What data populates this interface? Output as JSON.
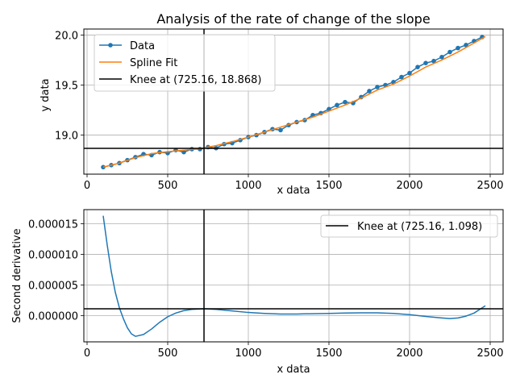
{
  "chart_data": [
    {
      "type": "line",
      "title": "Analysis of the rate of change of the slope",
      "xlabel": "x data",
      "ylabel": "y data",
      "xlim": [
        -20,
        2580
      ],
      "ylim": [
        18.61,
        20.06
      ],
      "xticks": [
        0,
        500,
        1000,
        1500,
        2000,
        2500
      ],
      "xtick_labels": [
        "0",
        "500",
        "1000",
        "1500",
        "2000",
        "2500"
      ],
      "yticks": [
        19.0,
        19.5,
        20.0
      ],
      "ytick_labels": [
        "19.0",
        "19.5",
        "20.0"
      ],
      "grid": true,
      "legend_position": "top-left",
      "series": [
        {
          "name": "Data",
          "style": "line-with-markers",
          "color": "#1f77b4",
          "x": [
            100,
            150,
            200,
            250,
            300,
            350,
            400,
            450,
            500,
            550,
            600,
            650,
            700,
            750,
            800,
            850,
            900,
            950,
            1000,
            1050,
            1100,
            1150,
            1200,
            1250,
            1300,
            1350,
            1400,
            1450,
            1500,
            1550,
            1600,
            1650,
            1700,
            1750,
            1800,
            1850,
            1900,
            1950,
            2000,
            2050,
            2100,
            2150,
            2200,
            2250,
            2300,
            2350,
            2400,
            2450
          ],
          "y": [
            18.68,
            18.7,
            18.72,
            18.75,
            18.78,
            18.81,
            18.8,
            18.83,
            18.82,
            18.85,
            18.83,
            18.86,
            18.86,
            18.88,
            18.87,
            18.91,
            18.92,
            18.95,
            18.98,
            19.0,
            19.03,
            19.06,
            19.05,
            19.1,
            19.13,
            19.15,
            19.2,
            19.22,
            19.26,
            19.3,
            19.33,
            19.32,
            19.38,
            19.44,
            19.48,
            19.5,
            19.53,
            19.58,
            19.62,
            19.68,
            19.72,
            19.74,
            19.78,
            19.83,
            19.87,
            19.9,
            19.94,
            19.98
          ]
        },
        {
          "name": "Spline Fit",
          "style": "line",
          "color": "#ff7f0e",
          "x": [
            100,
            200,
            300,
            400,
            500,
            600,
            700,
            800,
            900,
            1000,
            1100,
            1200,
            1300,
            1400,
            1500,
            1600,
            1700,
            1800,
            1900,
            2000,
            2100,
            2200,
            2300,
            2400,
            2470
          ],
          "y": [
            18.68,
            18.72,
            18.775,
            18.815,
            18.835,
            18.85,
            18.865,
            18.895,
            18.935,
            18.98,
            19.03,
            19.08,
            19.13,
            19.18,
            19.24,
            19.3,
            19.37,
            19.45,
            19.51,
            19.59,
            19.68,
            19.75,
            19.83,
            19.92,
            19.985
          ]
        },
        {
          "name": "Knee at (725.16, 18.868)",
          "style": "crosshair",
          "color": "#000000",
          "x": 725.16,
          "y": 18.868
        }
      ]
    },
    {
      "type": "line",
      "title": "",
      "xlabel": "x data",
      "ylabel": "Second derivative",
      "xlim": [
        -20,
        2580
      ],
      "ylim": [
        -4.3e-06,
        1.73e-05
      ],
      "xticks": [
        0,
        500,
        1000,
        1500,
        2000,
        2500
      ],
      "xtick_labels": [
        "0",
        "500",
        "1000",
        "1500",
        "2000",
        "2500"
      ],
      "yticks": [
        0,
        5e-06,
        1e-05,
        1.5e-05
      ],
      "ytick_labels": [
        "0.000000",
        "0.000005",
        "0.000010",
        "0.000015"
      ],
      "grid": true,
      "legend_position": "top-right",
      "series": [
        {
          "name": "",
          "style": "line",
          "color": "#1f77b4",
          "x": [
            100,
            125,
            150,
            175,
            200,
            225,
            250,
            275,
            300,
            350,
            400,
            450,
            500,
            550,
            600,
            650,
            725,
            800,
            900,
            1000,
            1100,
            1200,
            1300,
            1400,
            1500,
            1600,
            1700,
            1800,
            1900,
            2000,
            2100,
            2200,
            2250,
            2300,
            2350,
            2400,
            2470
          ],
          "y": [
            1.63e-05,
            1.15e-05,
            7.2e-06,
            3.8e-06,
            1.3e-06,
            -5e-07,
            -2e-06,
            -3e-06,
            -3.4e-06,
            -3.1e-06,
            -2.2e-06,
            -1.1e-06,
            -2e-07,
            4e-07,
            8e-07,
            1e-06,
            1.1e-06,
            1e-06,
            7.5e-07,
            5e-07,
            3.5e-07,
            2.5e-07,
            2.5e-07,
            3e-07,
            3.5e-07,
            4e-07,
            4.5e-07,
            4.5e-07,
            3.5e-07,
            1.5e-07,
            -1.5e-07,
            -4e-07,
            -5e-07,
            -4e-07,
            -1e-07,
            4e-07,
            1.6e-06
          ]
        },
        {
          "name": "Knee at (725.16, 1.098)",
          "style": "crosshair",
          "color": "#000000",
          "x": 725.16,
          "y": 1.098e-06
        }
      ]
    }
  ]
}
